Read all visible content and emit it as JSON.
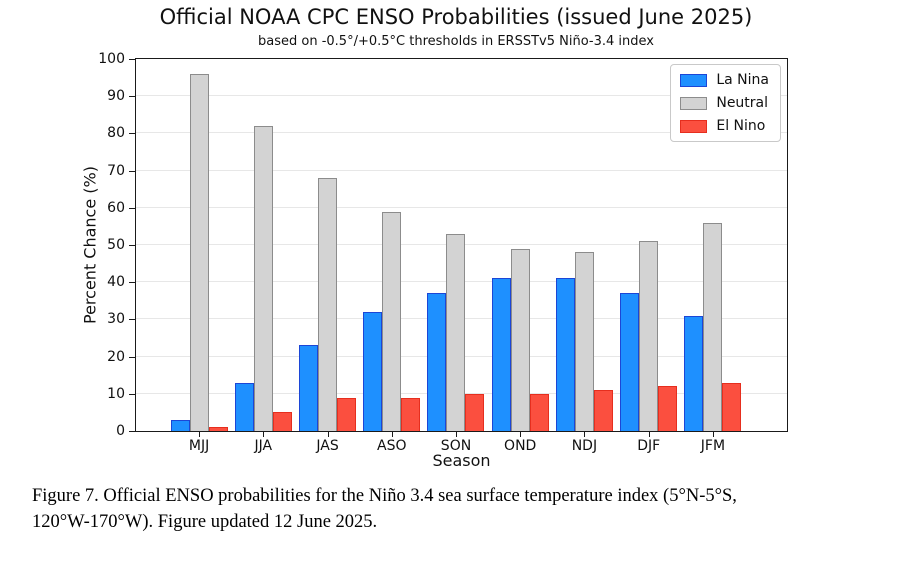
{
  "figure": {
    "title": "Official NOAA CPC ENSO Probabilities (issued June 2025)",
    "subtitle": "based on -0.5°/+0.5°C thresholds in ERSSTv5 Niño-3.4 index",
    "caption_line1": "Figure 7. Official ENSO probabilities for the Niño 3.4 sea surface temperature index (5°N-5°S,",
    "caption_line2": "120°W-170°W). Figure updated 12 June 2025."
  },
  "chart_data": {
    "type": "bar",
    "title": "Official NOAA CPC ENSO Probabilities (issued June 2025)",
    "subtitle": "based on -0.5°/+0.5°C thresholds in ERSSTv5 Niño-3.4 index",
    "xlabel": "Season",
    "ylabel": "Percent Chance (%)",
    "ylim": [
      0,
      100
    ],
    "yticks": [
      0,
      10,
      20,
      30,
      40,
      50,
      60,
      70,
      80,
      90,
      100
    ],
    "grid": true,
    "legend_position": "upper right",
    "categories": [
      "MJJ",
      "JJA",
      "JAS",
      "ASO",
      "SON",
      "OND",
      "NDJ",
      "DJF",
      "JFM"
    ],
    "series": [
      {
        "name": "La Nina",
        "color": "#1E90FF",
        "edge_color": "#1C46D6",
        "values": [
          3,
          13,
          23,
          32,
          37,
          41,
          41,
          37,
          31
        ]
      },
      {
        "name": "Neutral",
        "color": "#D3D3D3",
        "edge_color": "#8C8C8C",
        "values": [
          96,
          82,
          68,
          59,
          53,
          49,
          48,
          51,
          56
        ]
      },
      {
        "name": "El Nino",
        "color": "#FB4F3F",
        "edge_color": "#E62E1E",
        "values": [
          1,
          5,
          9,
          9,
          10,
          10,
          11,
          12,
          13
        ]
      }
    ]
  }
}
